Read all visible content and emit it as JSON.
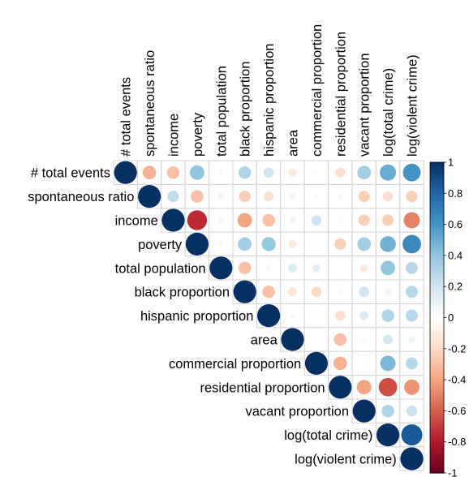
{
  "chart_data": {
    "type": "heatmap",
    "style": "upper-triangle correlation matrix, circle glyphs",
    "variables": [
      "# total events",
      "spontaneous ratio",
      "income",
      "poverty",
      "total population",
      "black proportion",
      "hispanic proportion",
      "area",
      "commercial proportion",
      "residential proportion",
      "vacant proportion",
      "log(total crime)",
      "log(violent crime)"
    ],
    "matrix": [
      [
        1,
        -0.35,
        -0.3,
        0.4,
        0.05,
        0.3,
        0.2,
        -0.12,
        0.02,
        -0.18,
        0.35,
        0.5,
        0.6
      ],
      [
        null,
        1,
        0.25,
        -0.3,
        0.08,
        -0.25,
        -0.18,
        0.07,
        0.03,
        0.05,
        -0.25,
        -0.18,
        -0.25
      ],
      [
        null,
        null,
        1,
        -0.75,
        0.06,
        -0.4,
        -0.3,
        0.08,
        0.2,
        0.02,
        -0.25,
        -0.25,
        -0.5
      ],
      [
        null,
        null,
        null,
        1,
        -0.05,
        0.35,
        0.38,
        -0.12,
        0,
        -0.25,
        0.35,
        0.48,
        0.65
      ],
      [
        null,
        null,
        null,
        null,
        1,
        -0.3,
        0.05,
        0.15,
        0.12,
        0,
        -0.12,
        0.4,
        0.28
      ],
      [
        null,
        null,
        null,
        null,
        null,
        1,
        -0.3,
        -0.15,
        -0.2,
        0.05,
        0.2,
        0.08,
        0.28
      ],
      [
        null,
        null,
        null,
        null,
        null,
        null,
        1,
        -0.05,
        0,
        -0.18,
        0.15,
        0.3,
        0.28
      ],
      [
        null,
        null,
        null,
        null,
        null,
        null,
        null,
        1,
        0,
        -0.3,
        0.03,
        0.18,
        0.08
      ],
      [
        null,
        null,
        null,
        null,
        null,
        null,
        null,
        null,
        1,
        -0.35,
        0.02,
        0.45,
        0.28
      ],
      [
        null,
        null,
        null,
        null,
        null,
        null,
        null,
        null,
        null,
        1,
        -0.4,
        -0.65,
        -0.45
      ],
      [
        null,
        null,
        null,
        null,
        null,
        null,
        null,
        null,
        null,
        null,
        1,
        0.3,
        0.22
      ],
      [
        null,
        null,
        null,
        null,
        null,
        null,
        null,
        null,
        null,
        null,
        null,
        1,
        0.85
      ],
      [
        null,
        null,
        null,
        null,
        null,
        null,
        null,
        null,
        null,
        null,
        null,
        null,
        1
      ]
    ],
    "colorbar": {
      "range": [
        -1,
        1
      ],
      "ticks": [
        "1",
        "0.8",
        "0.6",
        "0.4",
        "0.2",
        "0",
        "-0.2",
        "-0.4",
        "-0.6",
        "-0.8",
        "-1"
      ],
      "colors": [
        "#053061",
        "#2166AC",
        "#4393C3",
        "#92C5DE",
        "#D1E5F0",
        "#FFFFFF",
        "#FDDBC7",
        "#F4A582",
        "#D6604D",
        "#B2182B",
        "#67001F"
      ]
    },
    "legend": "right",
    "grid": true
  }
}
